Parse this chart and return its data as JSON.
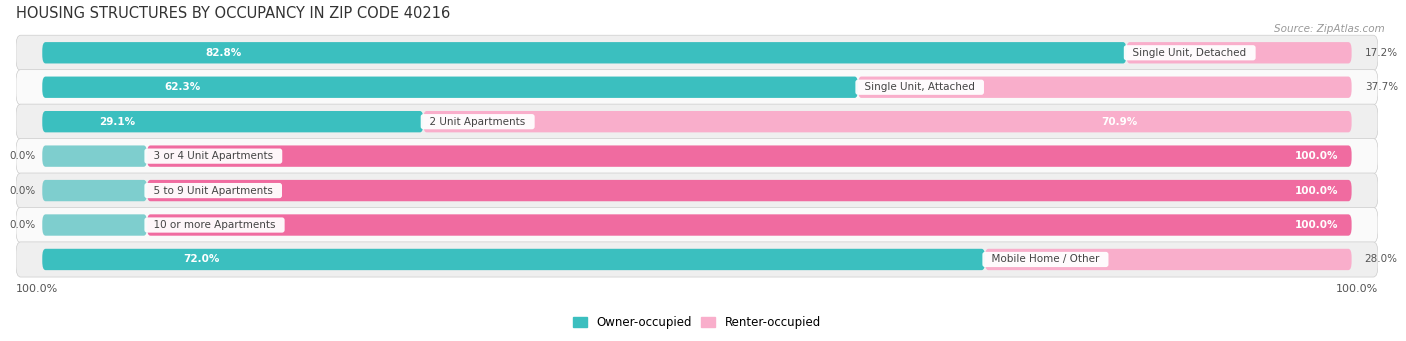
{
  "title": "HOUSING STRUCTURES BY OCCUPANCY IN ZIP CODE 40216",
  "source": "Source: ZipAtlas.com",
  "categories": [
    "Single Unit, Detached",
    "Single Unit, Attached",
    "2 Unit Apartments",
    "3 or 4 Unit Apartments",
    "5 to 9 Unit Apartments",
    "10 or more Apartments",
    "Mobile Home / Other"
  ],
  "owner_pct": [
    82.8,
    62.3,
    29.1,
    0.0,
    0.0,
    0.0,
    72.0
  ],
  "renter_pct": [
    17.2,
    37.7,
    70.9,
    100.0,
    100.0,
    100.0,
    28.0
  ],
  "owner_color": "#3BBFBF",
  "renter_color_full": "#F06BA0",
  "renter_color_light": "#F9AECB",
  "owner_color_light": "#7ECECE",
  "bg_row_color": "#EFEFEF",
  "bg_row_color2": "#FAFAFA",
  "title_fontsize": 10.5,
  "bar_height": 0.62,
  "x_left_label": "100.0%",
  "x_right_label": "100.0%",
  "legend_owner": "Owner-occupied",
  "legend_renter": "Renter-occupied"
}
